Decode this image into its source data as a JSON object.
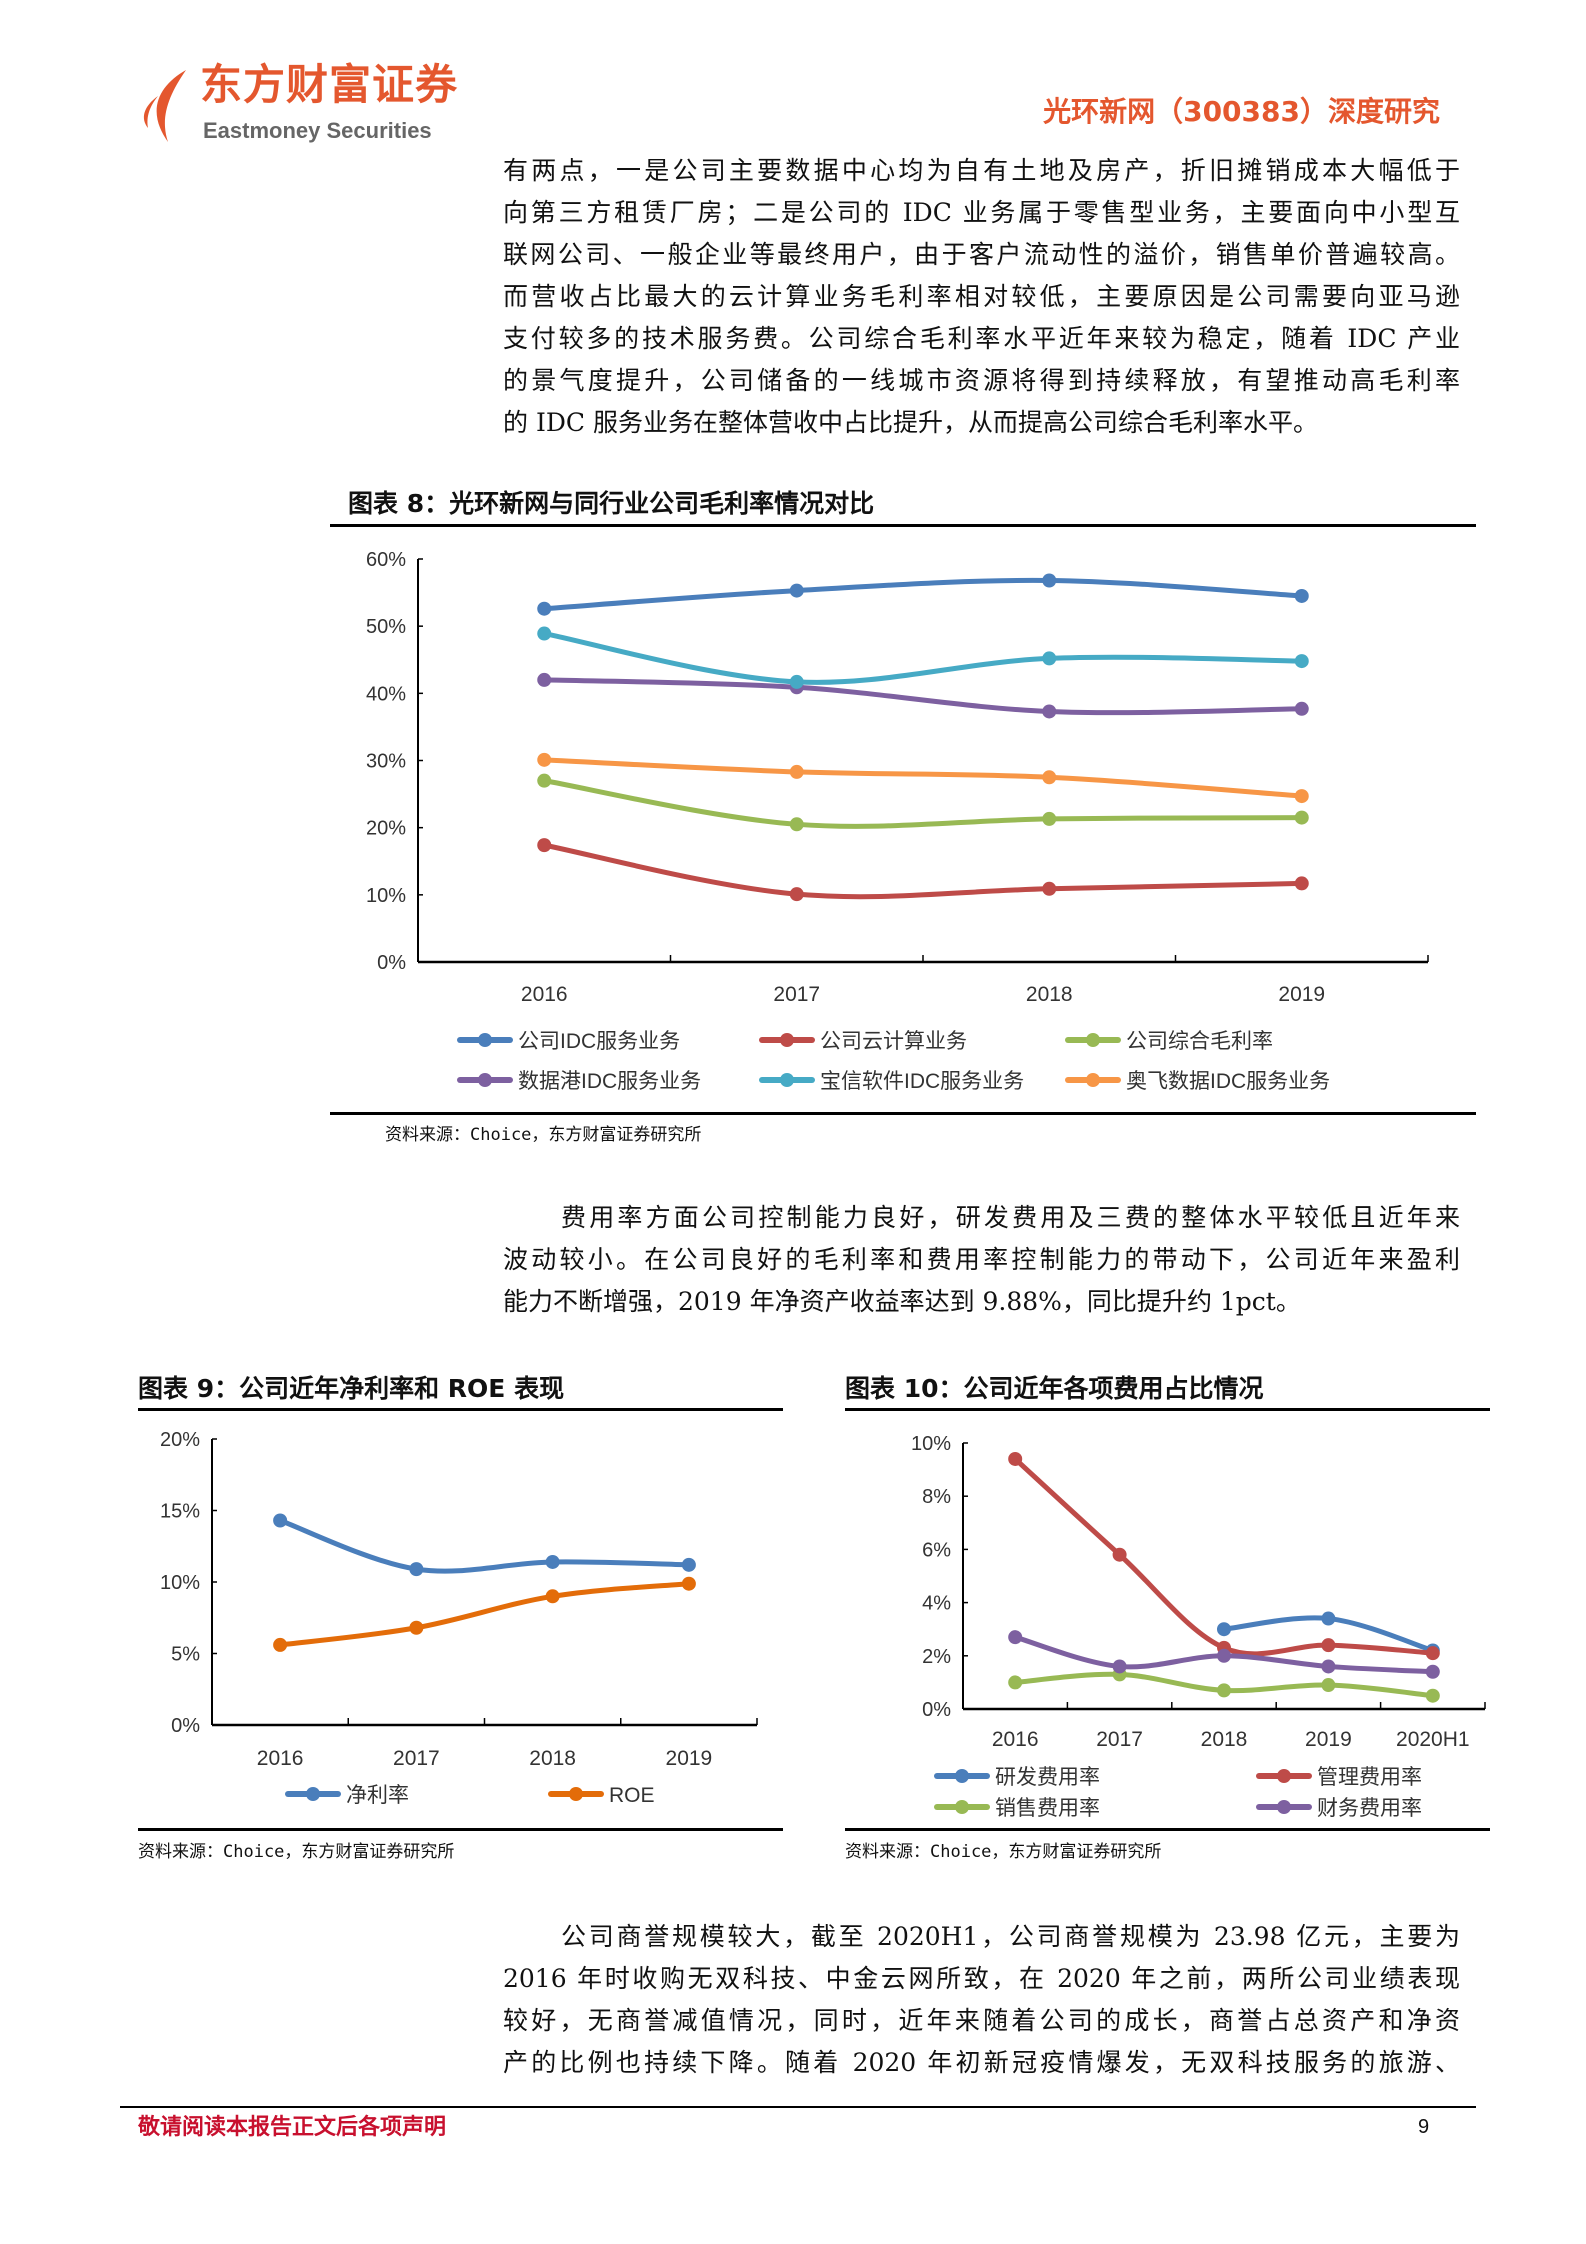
{
  "header": {
    "logo_cn": "东方财富证券",
    "logo_en": "Eastmoney Securities",
    "report_title": "光环新网（300383）深度研究",
    "brand_color": "#E4572E"
  },
  "paragraph1": [
    "有两点，一是公司主要数据中心均为自有土地及房产，折旧摊销成本大幅低于",
    "向第三方租赁厂房；二是公司的 IDC 业务属于零售型业务，主要面向中小型互",
    "联网公司、一般企业等最终用户，由于客户流动性的溢价，销售单价普遍较高。",
    "而营收占比最大的云计算业务毛利率相对较低，主要原因是公司需要向亚马逊",
    "支付较多的技术服务费。公司综合毛利率水平近年来较为稳定，随着 IDC 产业",
    "的景气度提升，公司储备的一线城市资源将得到持续释放，有望推动高毛利率",
    "的 IDC 服务业务在整体营收中占比提升，从而提高公司综合毛利率水平。"
  ],
  "paragraph2": [
    "费用率方面公司控制能力良好，研发费用及三费的整体水平较低且近年来",
    "波动较小。在公司良好的毛利率和费用率控制能力的带动下，公司近年来盈利",
    "能力不断增强，2019 年净资产收益率达到 9.88%，同比提升约 1pct。"
  ],
  "paragraph3": [
    "公司商誉规模较大，截至 2020H1，公司商誉规模为 23.98 亿元，主要为",
    "2016 年时收购无双科技、中金云网所致，在 2020 年之前，两所公司业绩表现",
    "较好，无商誉减值情况，同时，近年来随着公司的成长，商誉占总资产和净资",
    "产的比例也持续下降。随着 2020 年初新冠疫情爆发，无双科技服务的旅游、"
  ],
  "source_text": "资料来源：Choice，东方财富证券研究所",
  "footer": {
    "disclaimer": "敬请阅读本报告正文后各项声明",
    "page_number": "9"
  },
  "chart_data": [
    {
      "type": "line",
      "title": "图表 8：光环新网与同行业公司毛利率情况对比",
      "categories": [
        "2016",
        "2017",
        "2018",
        "2019"
      ],
      "ylim": [
        0,
        60
      ],
      "yticks": [
        "0%",
        "10%",
        "20%",
        "30%",
        "40%",
        "50%",
        "60%"
      ],
      "grid": false,
      "legend_position": "bottom",
      "series": [
        {
          "name": "公司IDC服务业务",
          "color": "#4A7EBB",
          "values": [
            52.6,
            55.3,
            56.8,
            54.5
          ]
        },
        {
          "name": "公司云计算业务",
          "color": "#BE4B48",
          "values": [
            17.4,
            10.1,
            10.9,
            11.7
          ]
        },
        {
          "name": "公司综合毛利率",
          "color": "#98B954",
          "values": [
            27.0,
            20.5,
            21.3,
            21.5
          ]
        },
        {
          "name": "数据港IDC服务业务",
          "color": "#7D60A0",
          "values": [
            42.0,
            40.9,
            37.3,
            37.7
          ]
        },
        {
          "name": "宝信软件IDC服务业务",
          "color": "#46AAC5",
          "values": [
            48.9,
            41.7,
            45.2,
            44.8
          ]
        },
        {
          "name": "奥飞数据IDC服务业务",
          "color": "#F79646",
          "values": [
            30.1,
            28.3,
            27.5,
            24.7
          ]
        }
      ]
    },
    {
      "type": "line",
      "title": "图表 9：公司近年净利率和 ROE 表现",
      "categories": [
        "2016",
        "2017",
        "2018",
        "2019"
      ],
      "ylim": [
        0,
        20
      ],
      "yticks": [
        "0%",
        "5%",
        "10%",
        "15%",
        "20%"
      ],
      "grid": false,
      "legend_position": "bottom",
      "series": [
        {
          "name": "净利率",
          "color": "#4A7EBB",
          "values": [
            14.3,
            10.9,
            11.4,
            11.2
          ]
        },
        {
          "name": "ROE",
          "color": "#E36C09",
          "values": [
            5.6,
            6.8,
            9.0,
            9.88
          ]
        }
      ]
    },
    {
      "type": "line",
      "title": "图表 10：公司近年各项费用占比情况",
      "categories": [
        "2016",
        "2017",
        "2018",
        "2019",
        "2020H1"
      ],
      "ylim": [
        0,
        10
      ],
      "yticks": [
        "0%",
        "2%",
        "4%",
        "6%",
        "8%",
        "10%"
      ],
      "grid": false,
      "legend_position": "bottom",
      "series": [
        {
          "name": "研发费用率",
          "color": "#4A7EBB",
          "values": [
            null,
            null,
            3.0,
            3.4,
            2.2
          ]
        },
        {
          "name": "管理费用率",
          "color": "#BE4B48",
          "values": [
            9.4,
            5.8,
            2.3,
            2.4,
            2.1
          ]
        },
        {
          "name": "销售费用率",
          "color": "#98B954",
          "values": [
            1.0,
            1.3,
            0.7,
            0.9,
            0.5
          ]
        },
        {
          "name": "财务费用率",
          "color": "#7D60A0",
          "values": [
            2.7,
            1.6,
            2.0,
            1.6,
            1.4
          ]
        }
      ]
    }
  ]
}
